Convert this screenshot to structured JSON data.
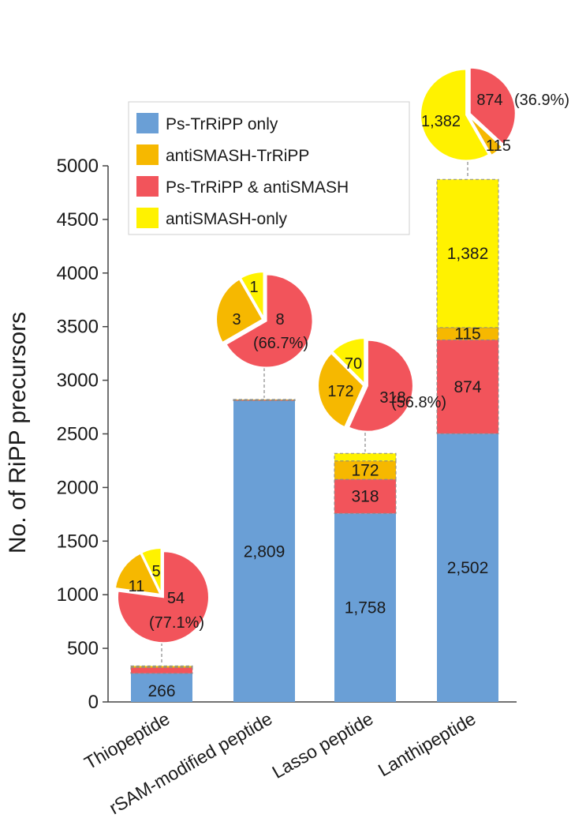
{
  "chart_data": {
    "type": "bar",
    "stacked": true,
    "ylabel": "No. of RiPP precursors",
    "ylim": [
      0,
      5000
    ],
    "yticks": [
      0,
      500,
      1000,
      1500,
      2000,
      2500,
      3000,
      3500,
      4000,
      4500,
      5000
    ],
    "categories": [
      "Thiopeptide",
      "rSAM-modified peptide",
      "Lasso peptide",
      "Lanthipeptide"
    ],
    "legend_position": "top-left",
    "series": [
      {
        "name": "Ps-TrRiPP only",
        "color": "#6A9FD6",
        "values": [
          266,
          2809,
          1758,
          2502
        ],
        "labels": [
          "266",
          "2,809",
          "1,758",
          "2,502"
        ]
      },
      {
        "name": "Ps-TrRiPP & antiSMASH",
        "color": "#F2545B",
        "values": [
          54,
          8,
          318,
          874
        ],
        "labels": [
          "",
          "",
          "318",
          "874"
        ]
      },
      {
        "name": "antiSMASH-TrRiPP",
        "color": "#F6B800",
        "values": [
          11,
          3,
          172,
          115
        ],
        "labels": [
          "",
          "",
          "172",
          "115"
        ]
      },
      {
        "name": "antiSMASH-only",
        "color": "#FFF200",
        "values": [
          5,
          1,
          70,
          1382
        ],
        "labels": [
          "",
          "",
          "",
          "1,382"
        ]
      }
    ],
    "pies": [
      {
        "category": "Thiopeptide",
        "slices": [
          {
            "series": "Ps-TrRiPP & antiSMASH",
            "value": 54,
            "label": "54",
            "percent": "(77.1%)"
          },
          {
            "series": "antiSMASH-TrRiPP",
            "value": 11,
            "label": "11"
          },
          {
            "series": "antiSMASH-only",
            "value": 5,
            "label": "5"
          }
        ]
      },
      {
        "category": "rSAM-modified peptide",
        "slices": [
          {
            "series": "Ps-TrRiPP & antiSMASH",
            "value": 8,
            "label": "8",
            "percent": "(66.7%)"
          },
          {
            "series": "antiSMASH-TrRiPP",
            "value": 3,
            "label": "3"
          },
          {
            "series": "antiSMASH-only",
            "value": 1,
            "label": "1"
          }
        ]
      },
      {
        "category": "Lasso peptide",
        "slices": [
          {
            "series": "Ps-TrRiPP & antiSMASH",
            "value": 318,
            "label": "318",
            "percent": "(56.8%)"
          },
          {
            "series": "antiSMASH-TrRiPP",
            "value": 172,
            "label": "172"
          },
          {
            "series": "antiSMASH-only",
            "value": 70,
            "label": "70"
          }
        ]
      },
      {
        "category": "Lanthipeptide",
        "slices": [
          {
            "series": "Ps-TrRiPP & antiSMASH",
            "value": 874,
            "label": "874",
            "percent": "(36.9%)"
          },
          {
            "series": "antiSMASH-TrRiPP",
            "value": 115,
            "label": "115"
          },
          {
            "series": "antiSMASH-only",
            "value": 1382,
            "label": "1,382"
          }
        ]
      }
    ],
    "legend": [
      {
        "label": "Ps-TrRiPP only",
        "color": "#6A9FD6"
      },
      {
        "label": "antiSMASH-TrRiPP",
        "color": "#F6B800"
      },
      {
        "label": "Ps-TrRiPP & antiSMASH",
        "color": "#F2545B"
      },
      {
        "label": "antiSMASH-only",
        "color": "#FFF200"
      }
    ]
  }
}
